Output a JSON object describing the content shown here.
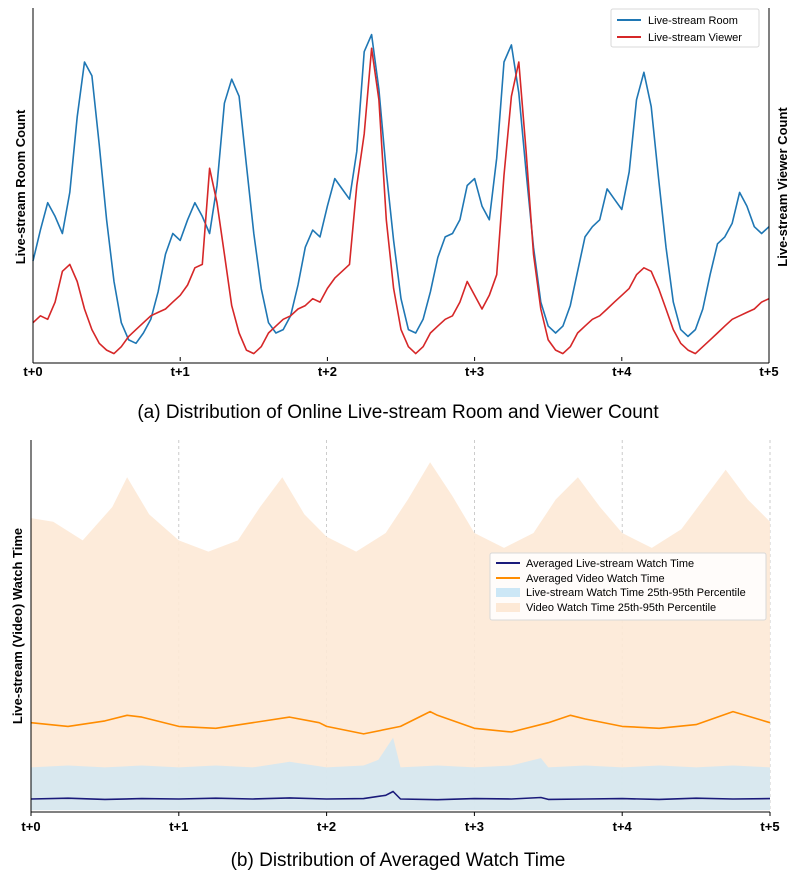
{
  "chart_data": [
    {
      "type": "line",
      "title": "(a) Distribution of Online Live-stream Room and Viewer Count",
      "xlabel": "",
      "ylabel_left": "Live-stream Room Count",
      "ylabel_right": "Live-stream Viewer Count",
      "xticks": [
        "t+0",
        "t+1",
        "t+2",
        "t+3",
        "t+4",
        "t+5"
      ],
      "xlim": [
        0,
        5
      ],
      "ylim": [
        0,
        100
      ],
      "legend_position": "top-right",
      "series": [
        {
          "name": "Live-stream Room",
          "color": "#1f77b4",
          "x": [
            0,
            0.05,
            0.1,
            0.15,
            0.2,
            0.25,
            0.3,
            0.35,
            0.4,
            0.45,
            0.5,
            0.55,
            0.6,
            0.65,
            0.7,
            0.75,
            0.8,
            0.85,
            0.9,
            0.95,
            1.0,
            1.05,
            1.1,
            1.15,
            1.2,
            1.25,
            1.3,
            1.35,
            1.4,
            1.45,
            1.5,
            1.55,
            1.6,
            1.65,
            1.7,
            1.75,
            1.8,
            1.85,
            1.9,
            1.95,
            2.0,
            2.05,
            2.1,
            2.15,
            2.2,
            2.25,
            2.3,
            2.35,
            2.4,
            2.45,
            2.5,
            2.55,
            2.6,
            2.65,
            2.7,
            2.75,
            2.8,
            2.85,
            2.9,
            2.95,
            3.0,
            3.05,
            3.1,
            3.15,
            3.2,
            3.25,
            3.3,
            3.35,
            3.4,
            3.45,
            3.5,
            3.55,
            3.6,
            3.65,
            3.7,
            3.75,
            3.8,
            3.85,
            3.9,
            3.95,
            4.0,
            4.05,
            4.1,
            4.15,
            4.2,
            4.25,
            4.3,
            4.35,
            4.4,
            4.45,
            4.5,
            4.55,
            4.6,
            4.65,
            4.7,
            4.75,
            4.8,
            4.85,
            4.9,
            4.95,
            5.0
          ],
          "values": [
            28,
            37,
            45,
            41,
            36,
            48,
            70,
            86,
            82,
            62,
            40,
            22,
            10,
            5,
            4,
            7,
            11,
            19,
            30,
            36,
            34,
            40,
            45,
            41,
            36,
            50,
            74,
            81,
            76,
            56,
            36,
            20,
            10,
            7,
            8,
            12,
            21,
            32,
            37,
            35,
            44,
            52,
            49,
            46,
            60,
            89,
            94,
            78,
            54,
            34,
            17,
            8,
            7,
            11,
            19,
            29,
            35,
            36,
            40,
            50,
            52,
            44,
            40,
            58,
            86,
            91,
            77,
            54,
            32,
            16,
            9,
            7,
            9,
            15,
            25,
            35,
            38,
            40,
            49,
            46,
            43,
            54,
            75,
            83,
            73,
            52,
            32,
            16,
            8,
            6,
            8,
            14,
            24,
            33,
            35,
            39,
            48,
            44,
            38,
            36,
            38
          ]
        },
        {
          "name": "Live-stream Viewer",
          "color": "#d62728",
          "x": [
            0,
            0.05,
            0.1,
            0.15,
            0.2,
            0.25,
            0.3,
            0.35,
            0.4,
            0.45,
            0.5,
            0.55,
            0.6,
            0.65,
            0.7,
            0.75,
            0.8,
            0.85,
            0.9,
            0.95,
            1.0,
            1.05,
            1.1,
            1.15,
            1.2,
            1.25,
            1.3,
            1.35,
            1.4,
            1.45,
            1.5,
            1.55,
            1.6,
            1.65,
            1.7,
            1.75,
            1.8,
            1.85,
            1.9,
            1.95,
            2.0,
            2.05,
            2.1,
            2.15,
            2.2,
            2.25,
            2.3,
            2.35,
            2.4,
            2.45,
            2.5,
            2.55,
            2.6,
            2.65,
            2.7,
            2.75,
            2.8,
            2.85,
            2.9,
            2.95,
            3.0,
            3.05,
            3.1,
            3.15,
            3.2,
            3.25,
            3.3,
            3.35,
            3.4,
            3.45,
            3.5,
            3.55,
            3.6,
            3.65,
            3.7,
            3.75,
            3.8,
            3.85,
            3.9,
            3.95,
            4.0,
            4.05,
            4.1,
            4.15,
            4.2,
            4.25,
            4.3,
            4.35,
            4.4,
            4.45,
            4.5,
            4.55,
            4.6,
            4.65,
            4.7,
            4.75,
            4.8,
            4.85,
            4.9,
            4.95,
            5.0
          ],
          "values": [
            10,
            12,
            11,
            16,
            25,
            27,
            22,
            14,
            8,
            4,
            2,
            1,
            3,
            6,
            8,
            10,
            12,
            13,
            14,
            16,
            18,
            21,
            26,
            27,
            55,
            45,
            30,
            15,
            7,
            2,
            1,
            3,
            7,
            9,
            11,
            12,
            14,
            15,
            17,
            16,
            20,
            23,
            25,
            27,
            50,
            65,
            90,
            75,
            40,
            20,
            8,
            3,
            1,
            3,
            7,
            9,
            11,
            12,
            16,
            22,
            18,
            14,
            18,
            24,
            53,
            76,
            86,
            60,
            30,
            14,
            5,
            2,
            1,
            3,
            7,
            9,
            11,
            12,
            14,
            16,
            18,
            20,
            24,
            26,
            25,
            20,
            14,
            8,
            4,
            2,
            1,
            3,
            5,
            7,
            9,
            11,
            12,
            13,
            14,
            16,
            17
          ]
        }
      ]
    },
    {
      "type": "area",
      "title": "(b) Distribution of Averaged Watch Time",
      "xlabel": "",
      "ylabel": "Live-stream (Video) Watch Time",
      "xticks": [
        "t+0",
        "t+1",
        "t+2",
        "t+3",
        "t+4",
        "t+5"
      ],
      "xlim": [
        0,
        5
      ],
      "ylim": [
        0,
        100
      ],
      "grid": "vertical dashed",
      "legend_position": "center-right",
      "series": [
        {
          "name": "Averaged Live-stream Watch Time",
          "color": "#1a1a7a",
          "kind": "line",
          "x": [
            0,
            0.25,
            0.5,
            0.75,
            1.0,
            1.25,
            1.5,
            1.75,
            2.0,
            2.25,
            2.4,
            2.45,
            2.5,
            2.75,
            3.0,
            3.25,
            3.45,
            3.5,
            3.75,
            4.0,
            4.25,
            4.5,
            4.75,
            5.0
          ],
          "values": [
            3.5,
            3.7,
            3.4,
            3.6,
            3.5,
            3.7,
            3.5,
            3.8,
            3.5,
            3.6,
            4.5,
            5.5,
            3.5,
            3.3,
            3.6,
            3.5,
            3.9,
            3.4,
            3.5,
            3.6,
            3.4,
            3.7,
            3.5,
            3.6
          ]
        },
        {
          "name": "Averaged Video Watch Time",
          "color": "#ff8c00",
          "kind": "line",
          "x": [
            0,
            0.25,
            0.5,
            0.65,
            0.75,
            1.0,
            1.25,
            1.5,
            1.75,
            1.95,
            2.0,
            2.25,
            2.5,
            2.7,
            2.75,
            3.0,
            3.25,
            3.5,
            3.65,
            3.75,
            4.0,
            4.25,
            4.5,
            4.75,
            5.0
          ],
          "values": [
            24,
            23,
            24.5,
            26,
            25.5,
            23,
            22.5,
            24,
            25.5,
            24,
            23,
            21,
            23,
            27,
            26,
            22.5,
            21.5,
            24,
            26,
            25,
            23,
            22.5,
            23.5,
            27,
            24
          ]
        },
        {
          "name": "Live-stream Watch Time 25th-95th Percentile",
          "color": "#cce7f6",
          "kind": "band",
          "x": [
            0,
            0.25,
            0.5,
            0.75,
            1.0,
            1.25,
            1.5,
            1.75,
            2.0,
            2.25,
            2.35,
            2.45,
            2.5,
            2.75,
            3.0,
            3.25,
            3.45,
            3.5,
            3.75,
            4.0,
            4.25,
            4.5,
            4.75,
            5.0
          ],
          "upper": [
            12,
            12.5,
            12,
            12.5,
            12,
            12.5,
            12,
            13.5,
            12,
            12.5,
            14,
            20,
            12,
            12.5,
            12,
            12.5,
            14.5,
            12,
            12.5,
            12,
            12.5,
            12,
            12.5,
            12
          ],
          "lower": [
            0.5,
            0.5,
            0.5,
            0.5,
            0.5,
            0.5,
            0.5,
            0.5,
            0.5,
            0.5,
            0.5,
            0.5,
            0.5,
            0.5,
            0.5,
            0.5,
            0.5,
            0.5,
            0.5,
            0.5,
            0.5,
            0.5,
            0.5,
            0.5
          ]
        },
        {
          "name": "Video Watch Time 25th-95th Percentile",
          "color": "#fde9d6",
          "kind": "band",
          "x": [
            0,
            0.15,
            0.35,
            0.55,
            0.65,
            0.8,
            1.0,
            1.2,
            1.4,
            1.55,
            1.7,
            1.85,
            2.0,
            2.2,
            2.4,
            2.55,
            2.7,
            2.85,
            3.0,
            3.2,
            3.4,
            3.55,
            3.7,
            3.85,
            4.0,
            4.2,
            4.4,
            4.55,
            4.7,
            4.85,
            5.0
          ],
          "upper": [
            79,
            78,
            73,
            82,
            90,
            80,
            73,
            70,
            73,
            82,
            90,
            80,
            74,
            70,
            75,
            84,
            94,
            85,
            75,
            71,
            75,
            84,
            90,
            82,
            75,
            71,
            76,
            84,
            92,
            84,
            78
          ],
          "lower": [
            0.5,
            0.5,
            0.5,
            0.5,
            0.5,
            0.5,
            0.5,
            0.5,
            0.5,
            0.5,
            0.5,
            0.5,
            0.5,
            0.5,
            0.5,
            0.5,
            0.5,
            0.5,
            0.5,
            0.5,
            0.5,
            0.5,
            0.5,
            0.5,
            0.5,
            0.5,
            0.5,
            0.5,
            0.5,
            0.5,
            0.5
          ]
        }
      ]
    }
  ]
}
